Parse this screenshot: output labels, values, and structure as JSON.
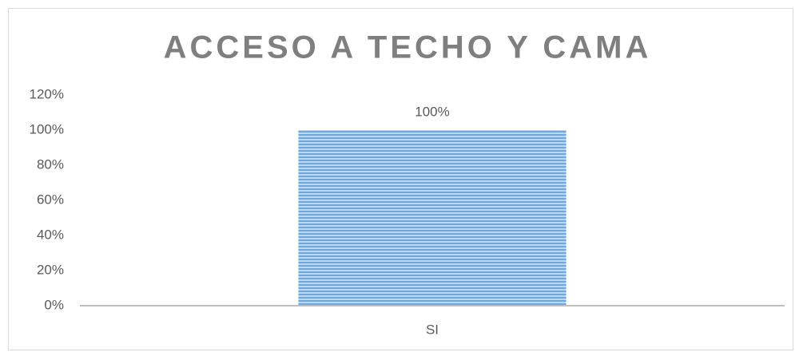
{
  "chart_data": {
    "type": "bar",
    "title": "ACCESO A TECHO Y CAMA",
    "categories": [
      "SI"
    ],
    "values": [
      100
    ],
    "value_labels": [
      "100%"
    ],
    "color": "#5b9bd5",
    "ylim": [
      0,
      120
    ],
    "yticks": [
      {
        "value": 0,
        "label": "0%"
      },
      {
        "value": 20,
        "label": "20%"
      },
      {
        "value": 40,
        "label": "40%"
      },
      {
        "value": 60,
        "label": "60%"
      },
      {
        "value": 80,
        "label": "80%"
      },
      {
        "value": 100,
        "label": "100%"
      },
      {
        "value": 120,
        "label": "120%"
      }
    ],
    "grid": false
  }
}
